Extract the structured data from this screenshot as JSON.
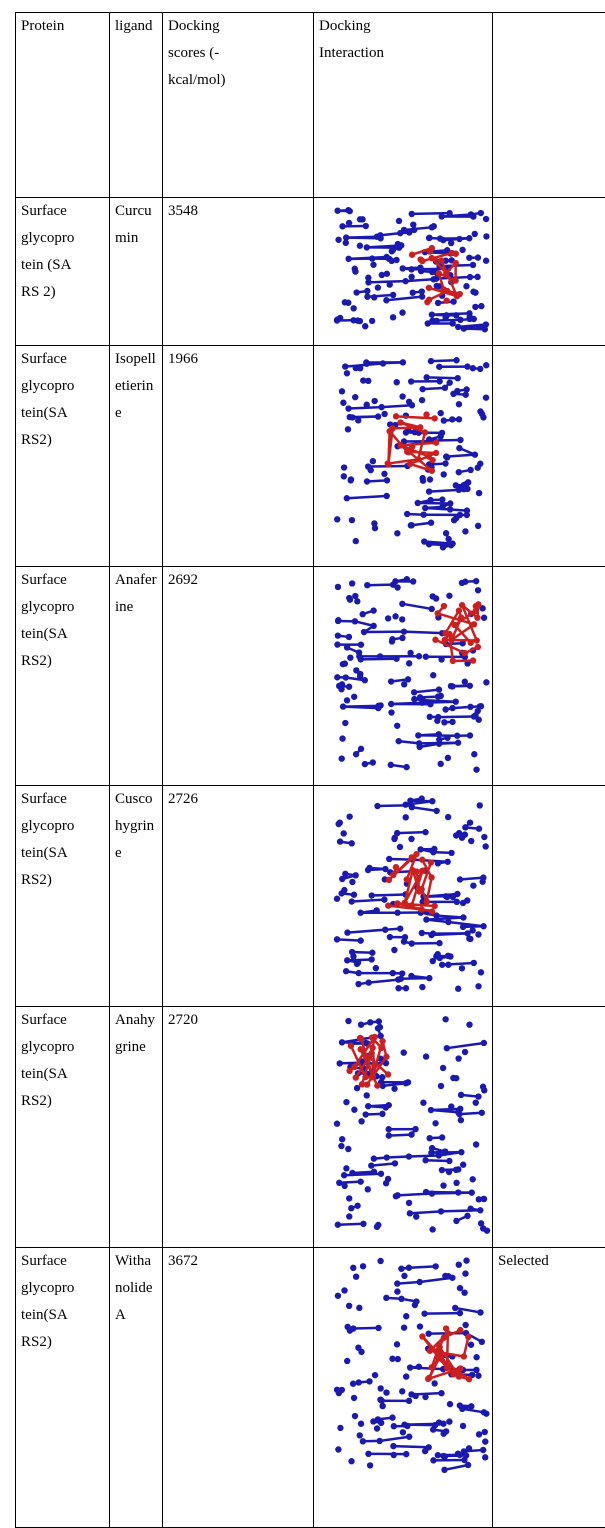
{
  "table": {
    "header": [
      "Protein",
      "ligand",
      "Docking scores (-kcal/mol)",
      "Docking Interaction"
    ],
    "rows": [
      {
        "protein": "Surface glycoprotein (SARS 2)",
        "ligand": "Curcumin",
        "score": "3548"
      },
      {
        "protein": "Surface glycoprotein(SARS2)",
        "ligand": "Isopelletierine",
        "score": "1966"
      },
      {
        "protein": "Surface glycoprotein(SARS2)",
        "ligand": "Anaferine",
        "score": "2692"
      },
      {
        "protein": "Surface glycoprotein(SARS2)",
        "ligand": "Cuscohygrine",
        "score": "2726"
      },
      {
        "protein": "Surface glycoprotein(SARS2)",
        "ligand": "Anahygrine",
        "score": "2720"
      },
      {
        "protein": "Surface glycoprotein(SARS2)",
        "ligand": "Withanolide A",
        "score": "3672",
        "note": "Selected"
      }
    ]
  }
}
